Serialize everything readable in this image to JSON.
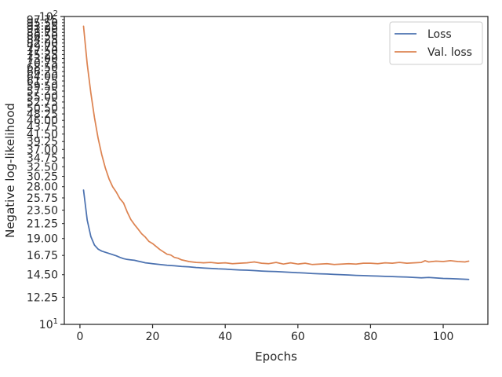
{
  "chart_data": {
    "type": "line",
    "title": "",
    "xlabel": "Epochs",
    "ylabel": "Negative log-likelihood",
    "xlim": [
      -4.3,
      112.3
    ],
    "ylim": [
      10,
      100
    ],
    "yscale": "log",
    "grid": false,
    "legend_position": "top-right",
    "x_ticks": [
      0,
      20,
      40,
      60,
      80,
      100
    ],
    "x_tick_labels": [
      "0",
      "20",
      "40",
      "60",
      "80",
      "100"
    ],
    "y_major_ticks": [
      10,
      100
    ],
    "y_minor_ticks": [
      12.25,
      14.5,
      16.75,
      19.0,
      21.25,
      23.5,
      25.75,
      28.0,
      30.25,
      32.5,
      34.75,
      37.0,
      39.25,
      41.5,
      43.75,
      46.0,
      48.25,
      50.5,
      52.75,
      55.0,
      57.25,
      59.5,
      61.75,
      64.0,
      66.25,
      68.5,
      70.75,
      73.0,
      75.25,
      77.5,
      79.75,
      82.0,
      84.25,
      86.5,
      88.75,
      91.0,
      93.25,
      95.5,
      97.75
    ],
    "y_minor_tick_labels": [
      "12.25",
      "14.50",
      "16.75",
      "19.00",
      "21.25",
      "23.50",
      "25.75",
      "28.00",
      "30.25",
      "32.50",
      "34.75",
      "37.00",
      "39.25",
      "41.50",
      "43.75",
      "46.00",
      "48.25",
      "50.50",
      "52.75",
      "55.00",
      "57.25",
      "59.50",
      "61.75",
      "64.00",
      "66.25",
      "68.50",
      "70.75",
      "73.00",
      "75.25",
      "77.50",
      "79.75",
      "82.00",
      "84.25",
      "86.50",
      "88.75",
      "91.00",
      "93.25",
      "95.50",
      "97.75"
    ],
    "series": [
      {
        "name": "Loss",
        "color": "#4c72b0",
        "x": [
          1,
          2,
          3,
          4,
          5,
          6,
          7,
          8,
          9,
          10,
          11,
          12,
          13,
          14,
          15,
          16,
          17,
          18,
          19,
          20,
          22,
          24,
          26,
          28,
          30,
          32,
          34,
          36,
          38,
          40,
          42,
          44,
          46,
          48,
          50,
          52,
          54,
          56,
          58,
          60,
          62,
          64,
          66,
          68,
          70,
          72,
          74,
          76,
          78,
          80,
          82,
          84,
          86,
          88,
          90,
          92,
          94,
          96,
          98,
          100,
          102,
          104,
          107
        ],
        "values": [
          27.3,
          21.8,
          19.3,
          18.1,
          17.55,
          17.3,
          17.15,
          17.0,
          16.85,
          16.7,
          16.5,
          16.35,
          16.25,
          16.2,
          16.15,
          16.05,
          15.95,
          15.85,
          15.8,
          15.75,
          15.65,
          15.55,
          15.5,
          15.42,
          15.38,
          15.3,
          15.25,
          15.2,
          15.15,
          15.12,
          15.07,
          15.02,
          15.0,
          14.95,
          14.9,
          14.87,
          14.85,
          14.8,
          14.75,
          14.72,
          14.68,
          14.63,
          14.6,
          14.57,
          14.53,
          14.5,
          14.47,
          14.43,
          14.4,
          14.38,
          14.35,
          14.32,
          14.3,
          14.27,
          14.24,
          14.2,
          14.17,
          14.2,
          14.15,
          14.1,
          14.08,
          14.05,
          14.0
        ]
      },
      {
        "name": "Val. loss",
        "color": "#dd8452",
        "x": [
          1,
          2,
          3,
          4,
          5,
          6,
          7,
          8,
          9,
          10,
          11,
          12,
          13,
          14,
          15,
          16,
          17,
          18,
          19,
          20,
          21,
          22,
          23,
          24,
          25,
          26,
          27,
          28,
          29,
          30,
          32,
          34,
          36,
          38,
          40,
          42,
          44,
          46,
          48,
          50,
          52,
          54,
          56,
          58,
          60,
          62,
          64,
          66,
          68,
          70,
          72,
          74,
          76,
          78,
          80,
          82,
          84,
          86,
          88,
          90,
          92,
          94,
          95,
          96,
          98,
          100,
          102,
          104,
          106,
          107
        ],
        "values": [
          93.0,
          70.0,
          56.5,
          47.0,
          40.2,
          35.6,
          32.2,
          29.7,
          28.0,
          26.9,
          25.6,
          24.8,
          23.2,
          21.9,
          21.1,
          20.4,
          19.7,
          19.2,
          18.6,
          18.3,
          17.9,
          17.5,
          17.2,
          16.9,
          16.8,
          16.5,
          16.4,
          16.2,
          16.1,
          16.0,
          15.9,
          15.85,
          15.9,
          15.8,
          15.85,
          15.75,
          15.8,
          15.85,
          15.95,
          15.8,
          15.75,
          15.9,
          15.7,
          15.85,
          15.7,
          15.8,
          15.65,
          15.7,
          15.75,
          15.65,
          15.7,
          15.75,
          15.7,
          15.8,
          15.8,
          15.75,
          15.85,
          15.8,
          15.9,
          15.8,
          15.85,
          15.9,
          16.1,
          15.95,
          16.05,
          16.0,
          16.1,
          16.0,
          15.95,
          16.05
        ]
      }
    ]
  }
}
